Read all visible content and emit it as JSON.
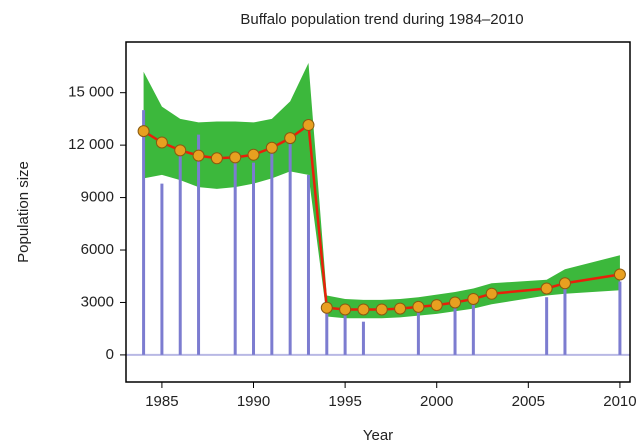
{
  "chart_data": {
    "type": "line",
    "title": "Buffalo population trend during 1984–2010",
    "x_label": "Year",
    "y_label": "Population size",
    "xlim": [
      1983.04,
      2010.55
    ],
    "ylim": [
      -1550,
      17900
    ],
    "xticks": [
      1985,
      1990,
      1995,
      2000,
      2005,
      2010
    ],
    "yticks": [
      0,
      3000,
      6000,
      9000,
      {
        "value": 12000,
        "label": "12 000"
      },
      {
        "value": 15000,
        "label": "15 000"
      }
    ],
    "series": [
      {
        "type": "band",
        "color": "#3cb83c",
        "x": [
          1984,
          1985,
          1986,
          1987,
          1988,
          1989,
          1990,
          1991,
          1992,
          1993,
          1994,
          1995,
          1996,
          1997,
          1998,
          1999,
          2000,
          2001,
          2002,
          2003,
          2006,
          2007,
          2010
        ],
        "lower": [
          10100,
          10300,
          10000,
          9600,
          9500,
          9600,
          9800,
          10100,
          10500,
          10300,
          2200,
          2100,
          2100,
          2100,
          2150,
          2250,
          2350,
          2500,
          2650,
          2900,
          3400,
          3500,
          3700
        ],
        "upper": [
          16200,
          14200,
          13500,
          13300,
          13350,
          13350,
          13300,
          13500,
          14500,
          16700,
          3400,
          3200,
          3150,
          3150,
          3200,
          3300,
          3450,
          3600,
          3800,
          4100,
          4300,
          4900,
          5700
        ]
      },
      {
        "type": "bar",
        "color": "#7c7cd0",
        "x": [
          1984,
          1985,
          1986,
          1987,
          1989,
          1990,
          1991,
          1992,
          1993,
          1994,
          1995,
          1996,
          1999,
          2001,
          2002,
          2006,
          2007,
          2010
        ],
        "values": [
          14000,
          9800,
          11800,
          12600,
          11100,
          11000,
          11900,
          12200,
          10300,
          2400,
          2500,
          1900,
          2500,
          2700,
          3000,
          3300,
          3800,
          4200
        ]
      },
      {
        "type": "line",
        "color": "#e8200a",
        "marker_color": "#e8a020",
        "x": [
          1984,
          1985,
          1986,
          1987,
          1988,
          1989,
          1990,
          1991,
          1992,
          1993,
          1994,
          1995,
          1996,
          1997,
          1998,
          1999,
          2000,
          2001,
          2002,
          2003,
          2006,
          2007,
          2010
        ],
        "values": [
          12800,
          12150,
          11700,
          11400,
          11250,
          11300,
          11450,
          11850,
          12400,
          13150,
          2700,
          2600,
          2600,
          2600,
          2650,
          2750,
          2850,
          3000,
          3200,
          3500,
          3800,
          4100,
          4600
        ]
      }
    ]
  }
}
